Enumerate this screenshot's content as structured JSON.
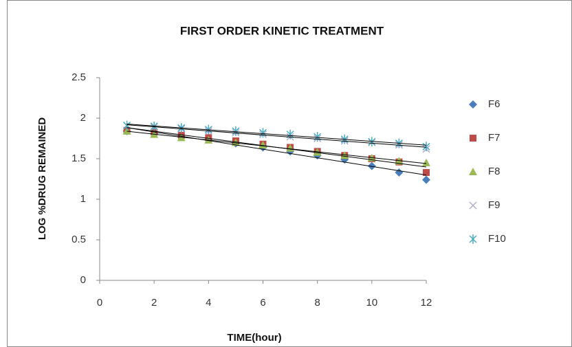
{
  "chart_data": {
    "type": "scatter",
    "title": "FIRST ORDER KINETIC TREATMENT",
    "x_label": "TIME(hour)",
    "y_label": "LOG %DRUG REMAINED",
    "x": [
      1,
      2,
      3,
      4,
      5,
      6,
      7,
      8,
      9,
      10,
      11,
      12
    ],
    "series": [
      {
        "name": "F6",
        "color": "#4a7ebb",
        "marker": "diamond",
        "values": [
          1.84,
          1.81,
          1.77,
          1.74,
          1.69,
          1.64,
          1.59,
          1.54,
          1.49,
          1.41,
          1.33,
          1.24
        ]
      },
      {
        "name": "F7",
        "color": "#be4b48",
        "marker": "square",
        "values": [
          1.85,
          1.83,
          1.79,
          1.76,
          1.72,
          1.68,
          1.64,
          1.59,
          1.54,
          1.5,
          1.46,
          1.33
        ]
      },
      {
        "name": "F8",
        "color": "#98b954",
        "marker": "triangle",
        "values": [
          1.84,
          1.8,
          1.76,
          1.73,
          1.7,
          1.67,
          1.63,
          1.58,
          1.54,
          1.51,
          1.47,
          1.45
        ]
      },
      {
        "name": "F9",
        "color": "#b3adc9",
        "marker": "x",
        "values": [
          1.91,
          1.89,
          1.87,
          1.84,
          1.82,
          1.8,
          1.77,
          1.75,
          1.72,
          1.7,
          1.67,
          1.62
        ]
      },
      {
        "name": "F10",
        "color": "#4bacc6",
        "marker": "star",
        "values": [
          1.91,
          1.9,
          1.88,
          1.86,
          1.84,
          1.82,
          1.8,
          1.77,
          1.74,
          1.71,
          1.69,
          1.65
        ]
      }
    ],
    "xlim": [
      0,
      12
    ],
    "xticks": [
      0,
      2,
      4,
      6,
      8,
      10,
      12
    ],
    "ylim": [
      0,
      2.5
    ],
    "yticks": [
      0,
      0.5,
      1,
      1.5,
      2,
      2.5
    ],
    "grid": false,
    "trendline": true,
    "legend": "right"
  }
}
